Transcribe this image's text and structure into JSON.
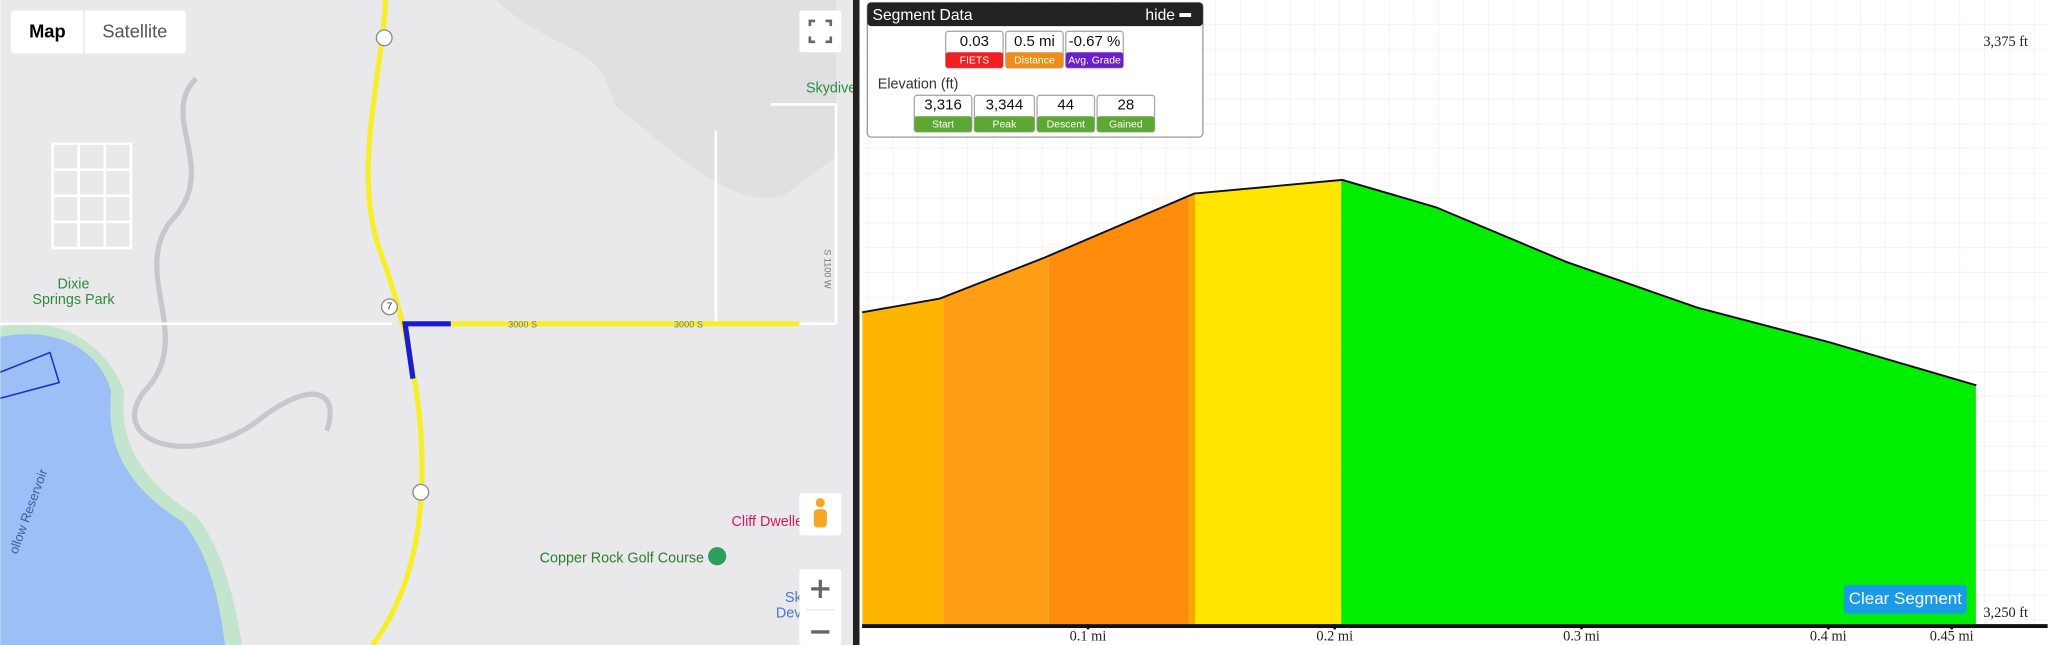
{
  "map": {
    "controls": [
      "Map",
      "Satellite"
    ],
    "places": [
      "Skydive",
      "Dixie",
      "Springs Park",
      "Copper Rock Golf Course",
      "Cliff Dwelle",
      "Sk",
      "Dev",
      "ollow Reservoir"
    ],
    "roads": [
      "3000 S",
      "3000 S",
      "S 1100 W"
    ],
    "shields": [
      "7"
    ]
  },
  "segment_data": {
    "title": "Segment Data",
    "hide": "hide",
    "stats": [
      {
        "value": "0.03",
        "label": "FIETS",
        "color": "#f02020"
      },
      {
        "value": "0.5 mi",
        "label": "Distance",
        "color": "#f08c1a"
      },
      {
        "value": "-0.67 %",
        "label": "Avg. Grade",
        "color": "#6a1fc8"
      }
    ],
    "elevation_title": "Elevation (ft)",
    "elevation": [
      {
        "value": "3,316",
        "label": "Start"
      },
      {
        "value": "3,344",
        "label": "Peak"
      },
      {
        "value": "44",
        "label": "Descent"
      },
      {
        "value": "28",
        "label": "Gained"
      }
    ]
  },
  "button": "Clear Segment",
  "chart_data": {
    "type": "area",
    "x": [
      0.0085,
      0.04,
      0.0825,
      0.143,
      0.203,
      0.241,
      0.294,
      0.347,
      0.4,
      0.46
    ],
    "values": [
      3316,
      3319,
      3328,
      3342,
      3345,
      3339,
      3327,
      3317,
      3309.5,
      3300
    ],
    "line_color": "#111111",
    "bands": [
      {
        "x": [
          0.0085,
          0.0413
        ],
        "color": "#ffb400"
      },
      {
        "x": [
          0.0413,
          0.0841
        ],
        "color": "#ff9d14"
      },
      {
        "x": [
          0.0841,
          0.1407
        ],
        "color": "#ff8c0a"
      },
      {
        "x": [
          0.1407,
          0.1434
        ],
        "color": "#ffa500"
      },
      {
        "x": [
          0.1434,
          0.2026
        ],
        "color": "#ffe500"
      },
      {
        "x": [
          0.2026,
          0.4598
        ],
        "color": "#00ee00"
      }
    ],
    "xlim": [
      0,
      0.47
    ],
    "ylim": [
      3247.7,
      3384.4
    ],
    "xticks": [
      {
        "value": 0.1,
        "label": "0.1 mi"
      },
      {
        "value": 0.2,
        "label": "0.2 mi"
      },
      {
        "value": 0.3,
        "label": "0.3 mi"
      },
      {
        "value": 0.4,
        "label": "0.4 mi"
      },
      {
        "value": 0.45,
        "label": "0.45 mi"
      }
    ],
    "yticks": [
      {
        "value": 3250,
        "label": "3,250 ft"
      },
      {
        "value": 3375,
        "label": "3,375 ft"
      }
    ]
  }
}
